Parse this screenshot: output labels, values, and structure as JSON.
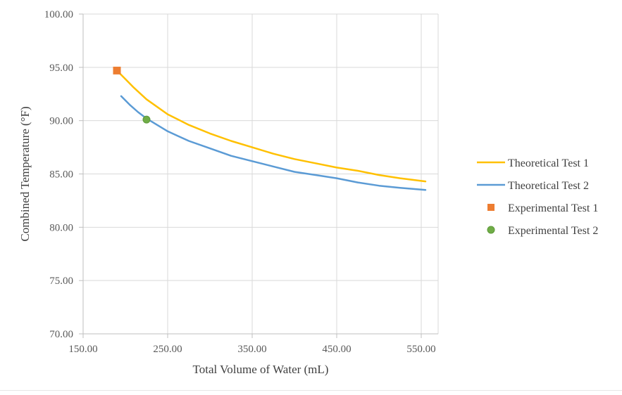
{
  "chart_data": {
    "type": "line",
    "title": "",
    "xlabel": "Total Volume of Water (mL)",
    "ylabel": "Combined Temperature (°F)",
    "xlim": [
      150,
      550
    ],
    "ylim": [
      70,
      100
    ],
    "x_ticks": [
      "150.00",
      "250.00",
      "350.00",
      "450.00",
      "550.00"
    ],
    "y_ticks": [
      "70.00",
      "75.00",
      "80.00",
      "85.00",
      "90.00",
      "95.00",
      "100.00"
    ],
    "grid": true,
    "legend_position": "right",
    "series": [
      {
        "name": "Theoretical Test 1",
        "kind": "line",
        "color": "#FFC000",
        "x": [
          190,
          200,
          210,
          225,
          250,
          275,
          300,
          325,
          350,
          375,
          400,
          425,
          450,
          475,
          500,
          525,
          555
        ],
        "y": [
          94.7,
          93.9,
          93.1,
          92.0,
          90.6,
          89.6,
          88.8,
          88.1,
          87.5,
          86.9,
          86.4,
          86.0,
          85.6,
          85.3,
          84.9,
          84.6,
          84.3
        ]
      },
      {
        "name": "Theoretical Test 2",
        "kind": "line",
        "color": "#5B9BD5",
        "x": [
          195,
          205,
          215,
          225,
          250,
          275,
          300,
          325,
          350,
          375,
          400,
          425,
          450,
          475,
          500,
          525,
          555
        ],
        "y": [
          92.3,
          91.5,
          90.8,
          90.2,
          89.0,
          88.1,
          87.4,
          86.7,
          86.2,
          85.7,
          85.2,
          84.9,
          84.6,
          84.2,
          83.9,
          83.7,
          83.5
        ]
      },
      {
        "name": "Experimental Test 1",
        "kind": "marker",
        "marker": "square",
        "color": "#ED7D31",
        "x": [
          190
        ],
        "y": [
          94.7
        ]
      },
      {
        "name": "Experimental Test 2",
        "kind": "marker",
        "marker": "circle",
        "color": "#70AD47",
        "x": [
          225
        ],
        "y": [
          90.1
        ]
      }
    ]
  }
}
